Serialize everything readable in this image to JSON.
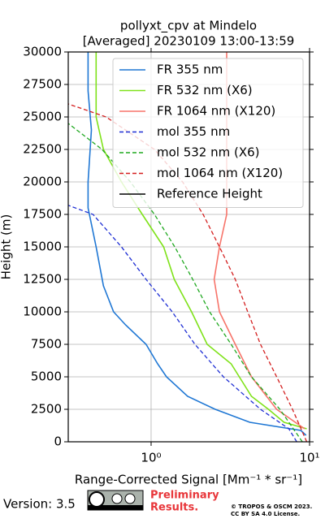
{
  "chart_data": {
    "type": "line",
    "title": "pollyxt_cpv at Mindelo",
    "subtitle": "[Averaged] 20230109 13:00-13:59",
    "x_label": "Range-Corrected Signal [Mm⁻¹ * sr⁻¹]",
    "y_label": "Height (m)",
    "xscale": "log",
    "xlim": [
      0.3,
      10
    ],
    "xticks": [
      {
        "value": 1,
        "label": "10⁰"
      },
      {
        "value": 10,
        "label": "10¹"
      }
    ],
    "ylim": [
      0,
      30000
    ],
    "yticks": [
      0,
      2500,
      5000,
      7500,
      10000,
      12500,
      15000,
      17500,
      20000,
      22500,
      25000,
      27500,
      30000
    ],
    "grid": true,
    "legend": "upper right",
    "series": [
      {
        "name": "FR 355 nm",
        "color": "#1f77d4",
        "style": "solid",
        "heights": [
          500,
          875,
          1500,
          2500,
          3500,
          5000,
          6000,
          7500,
          9000,
          10000,
          12000,
          15000,
          18000,
          20000,
          24000,
          27000,
          30000
        ],
        "values": [
          9.5,
          8.8,
          4.2,
          2.54,
          1.7,
          1.25,
          1.1,
          0.93,
          0.69,
          0.58,
          0.5,
          0.45,
          0.4,
          0.4,
          0.42,
          0.4,
          0.4
        ]
      },
      {
        "name": "FR 532 nm (X6)",
        "color": "#7fe21a",
        "style": "solid",
        "heights": [
          1000,
          1500,
          2500,
          3500,
          5000,
          6000,
          7500,
          10000,
          12500,
          15000,
          17500,
          20000,
          22500,
          25000,
          27500,
          30000
        ],
        "values": [
          9.6,
          6.9,
          5.5,
          4.3,
          3.6,
          3.2,
          2.26,
          1.8,
          1.4,
          1.2,
          0.88,
          0.65,
          0.5,
          0.45,
          0.45,
          0.45
        ]
      },
      {
        "name": "FR 1064 nm (X120)",
        "color": "#f7746a",
        "style": "solid",
        "heights": [
          1000,
          2500,
          5000,
          7500,
          10000,
          12500,
          15000,
          17500,
          20000,
          25000,
          30000
        ],
        "values": [
          9.3,
          6.2,
          4.3,
          3.4,
          2.7,
          2.5,
          2.7,
          3.0,
          3.0,
          3.0,
          3.0
        ]
      },
      {
        "name": "mol 355 nm",
        "color": "#1f2fd4",
        "style": "dashed",
        "heights": [
          0,
          1000,
          2500,
          5000,
          7500,
          10000,
          12500,
          15000,
          17500,
          18200
        ],
        "values": [
          8.3,
          7.4,
          4.9,
          2.86,
          1.89,
          1.36,
          0.93,
          0.65,
          0.43,
          0.3
        ]
      },
      {
        "name": "mol 532 nm (X6)",
        "color": "#1fa81f",
        "style": "dashed",
        "heights": [
          0,
          2500,
          5000,
          7500,
          10000,
          12500,
          15000,
          17500,
          20000,
          22500,
          24500
        ],
        "values": [
          9,
          6.5,
          4.3,
          3.2,
          2.34,
          1.83,
          1.41,
          1.05,
          0.74,
          0.49,
          0.3
        ]
      },
      {
        "name": "mol 1064 nm (X120)",
        "color": "#d41f1f",
        "style": "dashed",
        "heights": [
          0,
          2500,
          5000,
          7500,
          10000,
          12500,
          15000,
          17500,
          20000,
          22500,
          25000,
          26000
        ],
        "values": [
          9.6,
          7.8,
          6.2,
          4.9,
          4.07,
          3.4,
          2.7,
          2.13,
          1.58,
          1.05,
          0.52,
          0.3
        ]
      },
      {
        "name": "Reference Height",
        "color": "#000000",
        "style": "solid",
        "heights": [],
        "values": []
      }
    ]
  },
  "footer": {
    "version": "Version: 3.5",
    "status": "Preliminary Results.",
    "copyright": "© TROPOS & OSCM 2023.",
    "license": "CC BY SA 4.0 License."
  }
}
